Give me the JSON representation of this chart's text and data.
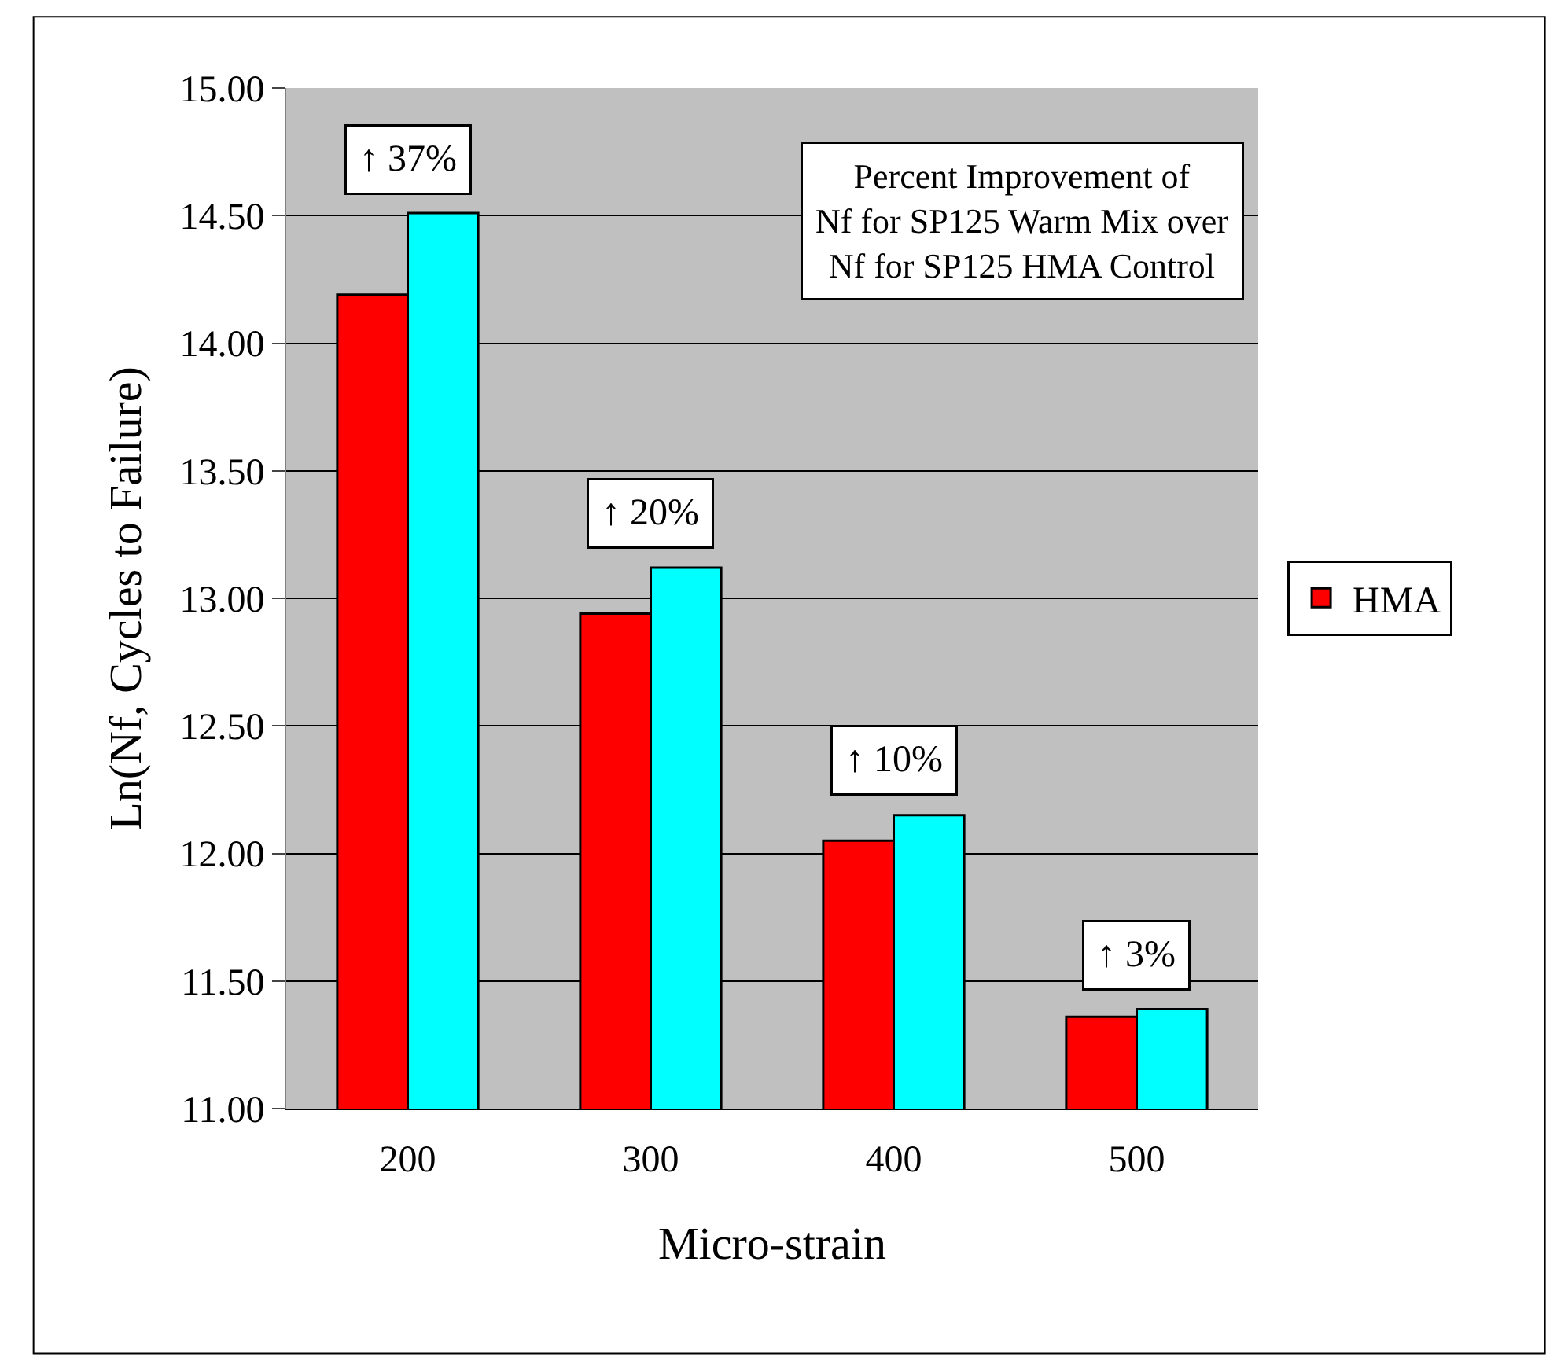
{
  "chart_data": {
    "type": "bar",
    "xlabel": "Micro-strain",
    "ylabel": "Ln(Nf, Cycles to Failure)",
    "categories": [
      "200",
      "300",
      "400",
      "500"
    ],
    "series": [
      {
        "name": "HMA",
        "color": "#ff0000",
        "values": [
          14.19,
          12.94,
          12.05,
          11.36
        ]
      },
      {
        "color": "#00ffff",
        "values": [
          14.51,
          13.12,
          12.15,
          11.39
        ]
      }
    ],
    "ylim": [
      11.0,
      15.0
    ],
    "yticks": [
      {
        "value": 11,
        "label": "11.00"
      },
      {
        "value": 11.5,
        "label": "11.50"
      },
      {
        "value": 12,
        "label": "12.00"
      },
      {
        "value": 12.5,
        "label": "12.50"
      },
      {
        "value": 13,
        "label": "13.00"
      },
      {
        "value": 13.5,
        "label": "13.50"
      },
      {
        "value": 14,
        "label": "14.00"
      },
      {
        "value": 14.5,
        "label": "14.50"
      },
      {
        "value": 15,
        "label": "15.00"
      }
    ],
    "grid": "y",
    "legend": "right",
    "annotations": [
      "↑ 37%",
      "↑ 20%",
      "↑ 10%",
      "↑ 3%",
      "Percent Improvement of\nNf for SP125 Warm Mix over\nNf for SP125 HMA Control"
    ]
  }
}
